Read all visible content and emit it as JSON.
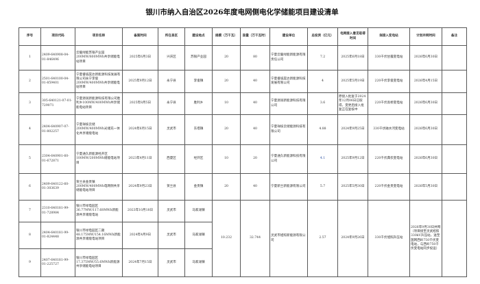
{
  "title": "银川市纳入自治区2026年度电网侧电化学储能项目建设清单",
  "headers": [
    "序号",
    "项目代码",
    "项目名称",
    "备案时间",
    "所在县区",
    "建设地点",
    "规模（万千瓦）",
    "容量（万千瓦时）",
    "建设单位",
    "总投资（亿元）",
    "电网接入意见取得时间",
    "拟接入变电站",
    "计划并网时间",
    "备注"
  ],
  "rows": [
    {
      "no": "1",
      "code": "2409-640908-04-01-846496",
      "name": "云暖绿能苏银产业园200MW/800MWh共享储能电站项目",
      "filed": "2025年6月3日",
      "county": "兴庆区",
      "site": "苏银产业园",
      "scale": "20",
      "capacity": "80",
      "builder": "宁夏云暖绿能新能源有限责任公司",
      "invest": "7.2",
      "grid_date": "2025年6月18日",
      "substation": "330千伏甘露变电站",
      "plan": "2026年6月30日",
      "note": ""
    },
    {
      "no": "2",
      "code": "2501-640100-04-01-859401",
      "name": "宁夏睿诚昊达新能源科技发展有限公司永宁李俊200MW/400MWh共享储能电站项目",
      "filed": "2025年9月12日",
      "county": "永宁县",
      "site": "李俊镇",
      "scale": "20",
      "capacity": "40",
      "builder": "宁夏睿诚昊达新能源科技发展有限公司",
      "invest": "4",
      "grid_date": "2025年5月19日",
      "substation": "220千伏李俊变电站",
      "plan": "2026年4月15日",
      "note": ""
    },
    {
      "no": "3",
      "code": "305-640121-07-01-729071",
      "name": "宁夏源润新能源科技有限公司胜利乡100MW/400MWh共享储能电站项目",
      "filed": "2025年8月5日",
      "county": "永宁县",
      "site": "胜利乡",
      "scale": "10",
      "capacity": "40",
      "builder": "宁夏源润新能源科技有限公司",
      "invest": "3.6",
      "grid_date": "原接入批复于2024年12月06日已取得，变更后接入批复正在复核中",
      "substation": "220千伏高桥变电站",
      "plan": "2026年6月30日",
      "note": ""
    },
    {
      "no": "4",
      "code": "2404-640907-07-01-802257",
      "name": "宁夏祥核云储200MW/400MWh光储充一体化共享储能电站",
      "filed": "2024年6月15日",
      "county": "灵武市",
      "site": "东塔镇",
      "scale": "20",
      "capacity": "40",
      "builder": "宁夏祥核云储能源科技有限公司",
      "invest": "4.88",
      "grid_date": "2024年9月25日",
      "substation": "330千伏磁水河变电站",
      "plan": "2026年6月30日",
      "note": ""
    },
    {
      "no": "5",
      "code": "2304-640901-60-01-672871",
      "name": "宁夏通久新能源经开区100MW/200MWh储能电站项目",
      "filed": "2023年4月11日",
      "county": "西夏区",
      "site": "经开区",
      "scale": "10",
      "capacity": "20",
      "builder": "宁夏通久新能源科技有限公司",
      "invest": "4.1",
      "grid_date": "2025年9月12日",
      "substation": "220千伏典农变电站",
      "plan": "2026年6月30日",
      "note": ""
    },
    {
      "no": "6",
      "code": "2409-640122-60-01-303639",
      "name": "贺兰县金贵镇200MW/400MWh电网侧共享储能电站项目",
      "filed": "2024年9月23日",
      "county": "贺兰县",
      "site": "金贵镇",
      "scale": "20",
      "capacity": "40",
      "builder": "宁夏新兰新能源有限公司",
      "invest": "5.7",
      "grid_date": "2025年5月30日",
      "substation": "220千伏金贵变电站",
      "plan": "2026年5月30日",
      "note": ""
    }
  ],
  "group_rows": [
    {
      "no": "7",
      "code": "2310-640181-99-01-728984",
      "name": "银川市绿电园区36.77MW/117.68MWh新能源共享储能电站",
      "filed": "2023年10月18日",
      "county": "灵武市",
      "site": "马家滩镇"
    },
    {
      "no": "8",
      "code": "2404-640181-99-01-824448",
      "name": "银川市绿电园区二期48.175MW/154.16MWh新能源共享储能电站项目",
      "filed": "2024年4月9日",
      "county": "灵武市",
      "site": "马家滩镇"
    },
    {
      "no": "9",
      "code": "2407-640181-99-01-225727",
      "name": "银川市绿电园区17.375MW/55.6MWh新能源共享储能电站项目",
      "filed": "2024年7月15日",
      "county": "灵武市",
      "site": "马家滩镇"
    }
  ],
  "group_shared": {
    "scale": "10.232",
    "capacity": "32.744",
    "builder": "灵武市旭照新能源有限公司",
    "invest": "2.57",
    "grid_date": "2024年9月26日",
    "substation": "330千伏旭照升压站",
    "plan": "2026年9月30日并网（项目接至灵武旭照330kV升压站，送至国网西岭750千伏变电站，与西岭750千伏变电站同步投运）",
    "note": ""
  },
  "colors": {
    "highlight_invest": "#2a4fa0"
  }
}
